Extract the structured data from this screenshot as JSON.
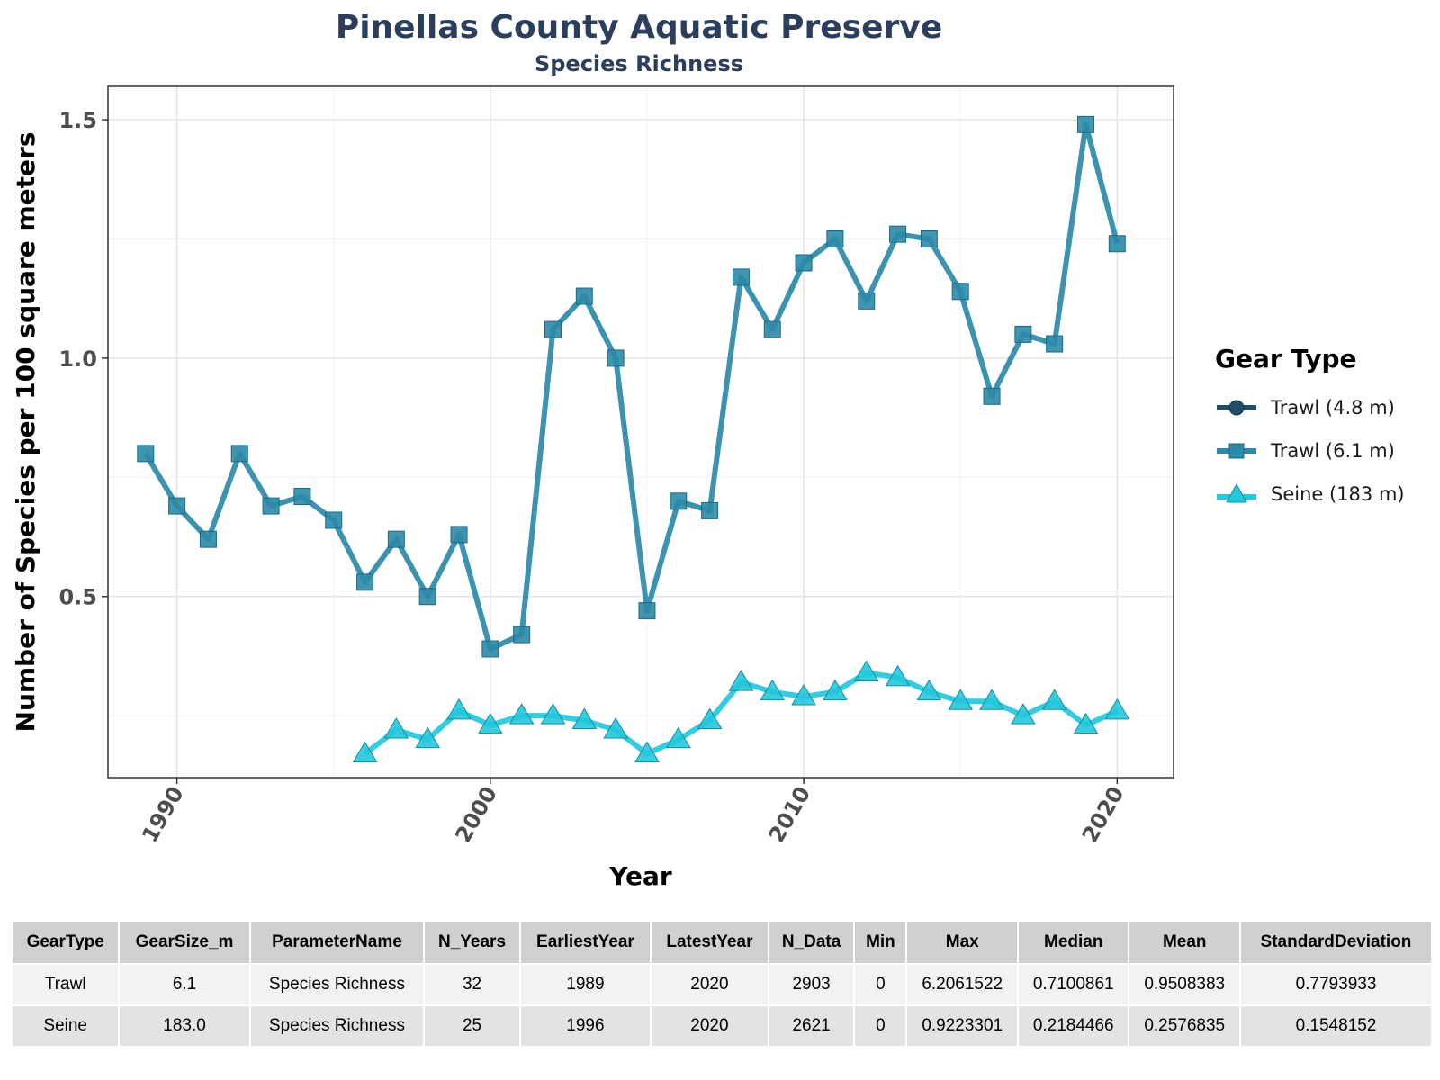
{
  "chart_data": {
    "type": "line",
    "title": "Pinellas County Aquatic Preserve",
    "subtitle": "Species Richness",
    "xlabel": "Year",
    "ylabel": "Number of Species per 100 square meters",
    "xlim": [
      1987.8,
      2021.8
    ],
    "ylim": [
      0.12,
      1.57
    ],
    "x_ticks": [
      1990,
      2000,
      2010,
      2020
    ],
    "y_ticks": [
      0.5,
      1.0,
      1.5
    ],
    "y_tick_labels": [
      "0.5",
      "1.0",
      "1.5"
    ],
    "grid": true,
    "legend_title": "Gear Type",
    "legend_position": "right",
    "legend_entries": [
      {
        "label": "Trawl (4.8 m)",
        "color": "#1f4e6b",
        "shape": "circle"
      },
      {
        "label": "Trawl (6.1 m)",
        "color": "#2b8aa8",
        "shape": "square"
      },
      {
        "label": "Seine (183 m)",
        "color": "#22c8dd",
        "shape": "triangle"
      }
    ],
    "series": [
      {
        "name": "Trawl (6.1 m)",
        "color": "#2b8aa8",
        "shape": "square",
        "x": [
          1989,
          1990,
          1991,
          1992,
          1993,
          1994,
          1995,
          1996,
          1997,
          1998,
          1999,
          2000,
          2001,
          2002,
          2003,
          2004,
          2005,
          2006,
          2007,
          2008,
          2009,
          2010,
          2011,
          2012,
          2013,
          2014,
          2015,
          2016,
          2017,
          2018,
          2019,
          2020
        ],
        "y": [
          0.8,
          0.69,
          0.62,
          0.8,
          0.69,
          0.71,
          0.66,
          0.53,
          0.62,
          0.5,
          0.63,
          0.39,
          0.42,
          1.06,
          1.13,
          1.0,
          0.47,
          0.7,
          0.68,
          1.17,
          1.06,
          1.2,
          1.25,
          1.12,
          1.26,
          1.25,
          1.14,
          0.92,
          1.05,
          1.03,
          1.49,
          1.24
        ]
      },
      {
        "name": "Seine (183 m)",
        "color": "#22c8dd",
        "shape": "triangle",
        "x": [
          1996,
          1997,
          1998,
          1999,
          2000,
          2001,
          2002,
          2003,
          2004,
          2005,
          2006,
          2007,
          2008,
          2009,
          2010,
          2011,
          2012,
          2013,
          2014,
          2015,
          2016,
          2017,
          2018,
          2019,
          2020
        ],
        "y": [
          0.17,
          0.22,
          0.2,
          0.26,
          0.23,
          0.25,
          0.25,
          0.24,
          0.22,
          0.17,
          0.2,
          0.24,
          0.32,
          0.3,
          0.29,
          0.3,
          0.34,
          0.33,
          0.3,
          0.28,
          0.28,
          0.25,
          0.28,
          0.23,
          0.26
        ]
      }
    ]
  },
  "table": {
    "headers": [
      "GearType",
      "GearSize_m",
      "ParameterName",
      "N_Years",
      "EarliestYear",
      "LatestYear",
      "N_Data",
      "Min",
      "Max",
      "Median",
      "Mean",
      "StandardDeviation"
    ],
    "rows": [
      [
        "Trawl",
        "6.1",
        "Species Richness",
        "32",
        "1989",
        "2020",
        "2903",
        "0",
        "6.2061522",
        "0.7100861",
        "0.9508383",
        "0.7793933"
      ],
      [
        "Seine",
        "183.0",
        "Species Richness",
        "25",
        "1996",
        "2020",
        "2621",
        "0",
        "0.9223301",
        "0.2184466",
        "0.2576835",
        "0.1548152"
      ]
    ]
  }
}
